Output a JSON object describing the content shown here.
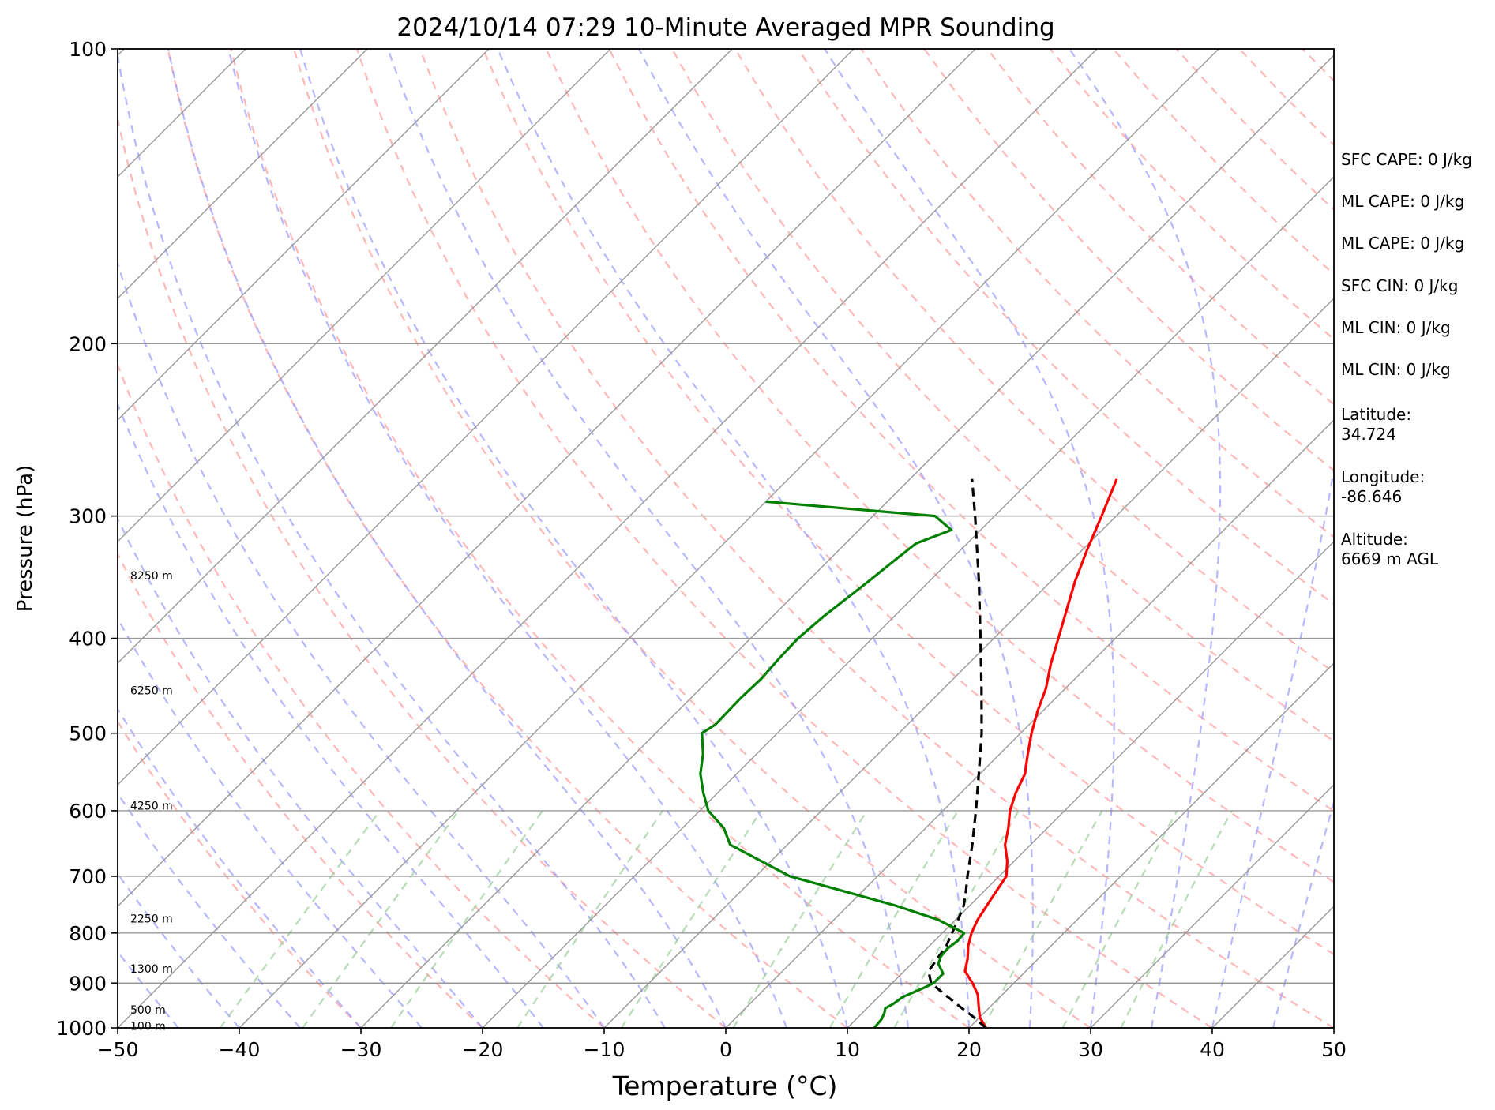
{
  "chart_data": {
    "type": "line",
    "title": "2024/10/14 07:29 10-Minute Averaged MPR Sounding",
    "xlabel": "Temperature (°C)",
    "ylabel": "Pressure (hPa)",
    "xlim": [
      -50,
      50
    ],
    "ylim": [
      1000,
      100
    ],
    "y_scale": "log",
    "skew_t": true,
    "grid": true,
    "x_ticks": [
      "−50",
      "−40",
      "−30",
      "−20",
      "−10",
      "0",
      "10",
      "20",
      "30",
      "40",
      "50"
    ],
    "y_ticks": [
      "100",
      "200",
      "300",
      "400",
      "500",
      "600",
      "700",
      "800",
      "900",
      "1000"
    ],
    "height_labels": [
      {
        "text": "8250 m",
        "p": 345
      },
      {
        "text": "6250 m",
        "p": 452
      },
      {
        "text": "4250 m",
        "p": 593
      },
      {
        "text": "2250 m",
        "p": 773
      },
      {
        "text": "1300 m",
        "p": 870
      },
      {
        "text": "500 m",
        "p": 958
      },
      {
        "text": "100 m",
        "p": 995
      }
    ],
    "series": [
      {
        "color": "#ff0000",
        "p": [
          1000,
          975,
          950,
          925,
          900,
          875,
          850,
          825,
          800,
          775,
          750,
          725,
          700,
          675,
          650,
          625,
          600,
          575,
          550,
          525,
          500,
          475,
          450,
          425,
          400,
          375,
          350,
          325,
          300,
          275
        ],
        "t": [
          21.4,
          20.0,
          19.0,
          18.0,
          16.6,
          15.0,
          14.2,
          13.2,
          12.4,
          11.8,
          11.4,
          11.0,
          10.6,
          9.4,
          7.9,
          6.8,
          5.5,
          4.5,
          3.7,
          2.3,
          0.9,
          -0.4,
          -1.6,
          -3.2,
          -4.7,
          -6.3,
          -8.0,
          -9.6,
          -11.2,
          -13.0
        ]
      },
      {
        "color": "#000000",
        "p": [
          1000,
          975,
          950,
          925,
          900,
          875,
          850,
          825,
          800,
          775,
          750,
          725,
          700,
          650,
          600,
          550,
          500,
          450,
          400,
          350,
          300,
          275
        ],
        "t": [
          21.4,
          19.5,
          17.4,
          15.3,
          13.2,
          12.0,
          11.7,
          11.4,
          10.8,
          10.2,
          9.5,
          8.5,
          7.4,
          5.2,
          2.7,
          -0.1,
          -3.2,
          -6.9,
          -11.1,
          -15.9,
          -21.6,
          -24.9
        ]
      },
      {
        "color": "#008000",
        "p": [
          1000,
          980,
          965,
          955,
          945,
          930,
          910,
          900,
          880,
          860,
          845,
          830,
          815,
          800,
          775,
          750,
          700,
          650,
          625,
          600,
          575,
          550,
          525,
          500,
          490,
          460,
          440,
          420,
          400,
          380,
          350,
          330,
          320,
          310,
          300,
          290
        ],
        "t": [
          12.2,
          12.1,
          11.8,
          11.5,
          11.8,
          12.0,
          13.0,
          13.4,
          13.4,
          12.2,
          11.8,
          11.7,
          11.9,
          11.8,
          8.5,
          3.9,
          -7.2,
          -14.7,
          -16.6,
          -19.3,
          -21.2,
          -23.0,
          -24.4,
          -26.2,
          -25.8,
          -25.9,
          -25.8,
          -26.0,
          -26.1,
          -25.8,
          -25.0,
          -24.5,
          -24.2,
          -22.4,
          -24.9,
          -40.0
        ]
      }
    ],
    "annotations": [
      {
        "text": "SFC CAPE: 0 J/kg"
      },
      {
        "text": "ML CAPE: 0 J/kg"
      },
      {
        "text": "ML CAPE: 0 J/kg"
      },
      {
        "text": "SFC CIN: 0 J/kg"
      },
      {
        "text": "ML CIN: 0 J/kg"
      },
      {
        "text": "ML CIN: 0 J/kg"
      },
      {
        "text": "Latitude:\n34.724"
      },
      {
        "text": "Longitude:\n-86.646"
      },
      {
        "text": "Altitude:\n6669 m AGL"
      }
    ],
    "colors": {
      "dry_adiabats": "#ff9999",
      "moist_adiabats": "#9999ff",
      "mixing_ratio": "#99cc99",
      "isotherms": "#999999"
    }
  }
}
